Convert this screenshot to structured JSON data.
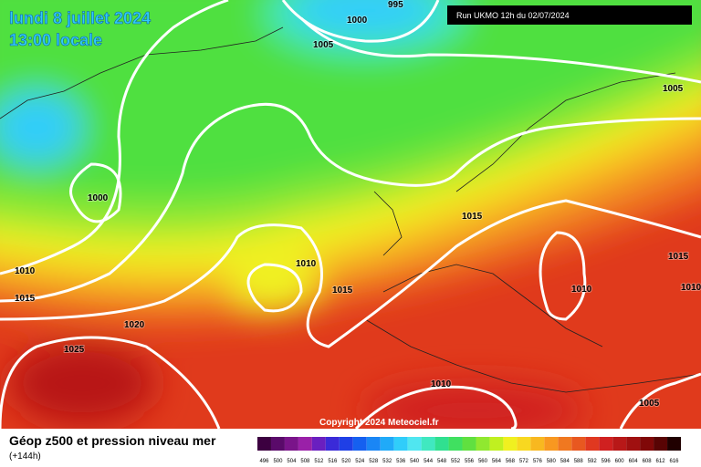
{
  "header": {
    "date": "lundi 8 juillet 2024",
    "time": "13:00 locale",
    "run": "Run UKMO 12h du 02/07/2024"
  },
  "isobar_labels": [
    995,
    1000,
    1005,
    1005,
    1000,
    1010,
    1015,
    1010,
    1015,
    1015,
    1015,
    1010,
    1010,
    1020,
    1025,
    1010,
    1005
  ],
  "copyright": "Copyright 2024 Meteociel.fr",
  "footer": {
    "title": "Géop z500 et pression niveau mer",
    "lead": "(+144h)"
  },
  "legend": {
    "labels": [
      496,
      500,
      504,
      508,
      512,
      516,
      520,
      524,
      528,
      532,
      536,
      540,
      544,
      548,
      552,
      556,
      560,
      564,
      568,
      572,
      576,
      580,
      584,
      588,
      592,
      596,
      600,
      604,
      608,
      612,
      616
    ],
    "colors": [
      "#3c0040",
      "#5a0a6a",
      "#7a148a",
      "#9a20a8",
      "#6a1fc0",
      "#3a2ad8",
      "#1f3fe6",
      "#1560f0",
      "#1a86f5",
      "#20aaf8",
      "#30cdfa",
      "#50e6f0",
      "#40e8c0",
      "#30e090",
      "#40e060",
      "#60e040",
      "#90e830",
      "#c0f020",
      "#f0f020",
      "#f8d820",
      "#f8b820",
      "#f89820",
      "#f07820",
      "#e85820",
      "#e03820",
      "#d02020",
      "#b81818",
      "#a01010",
      "#800808",
      "#580404",
      "#200000"
    ]
  }
}
